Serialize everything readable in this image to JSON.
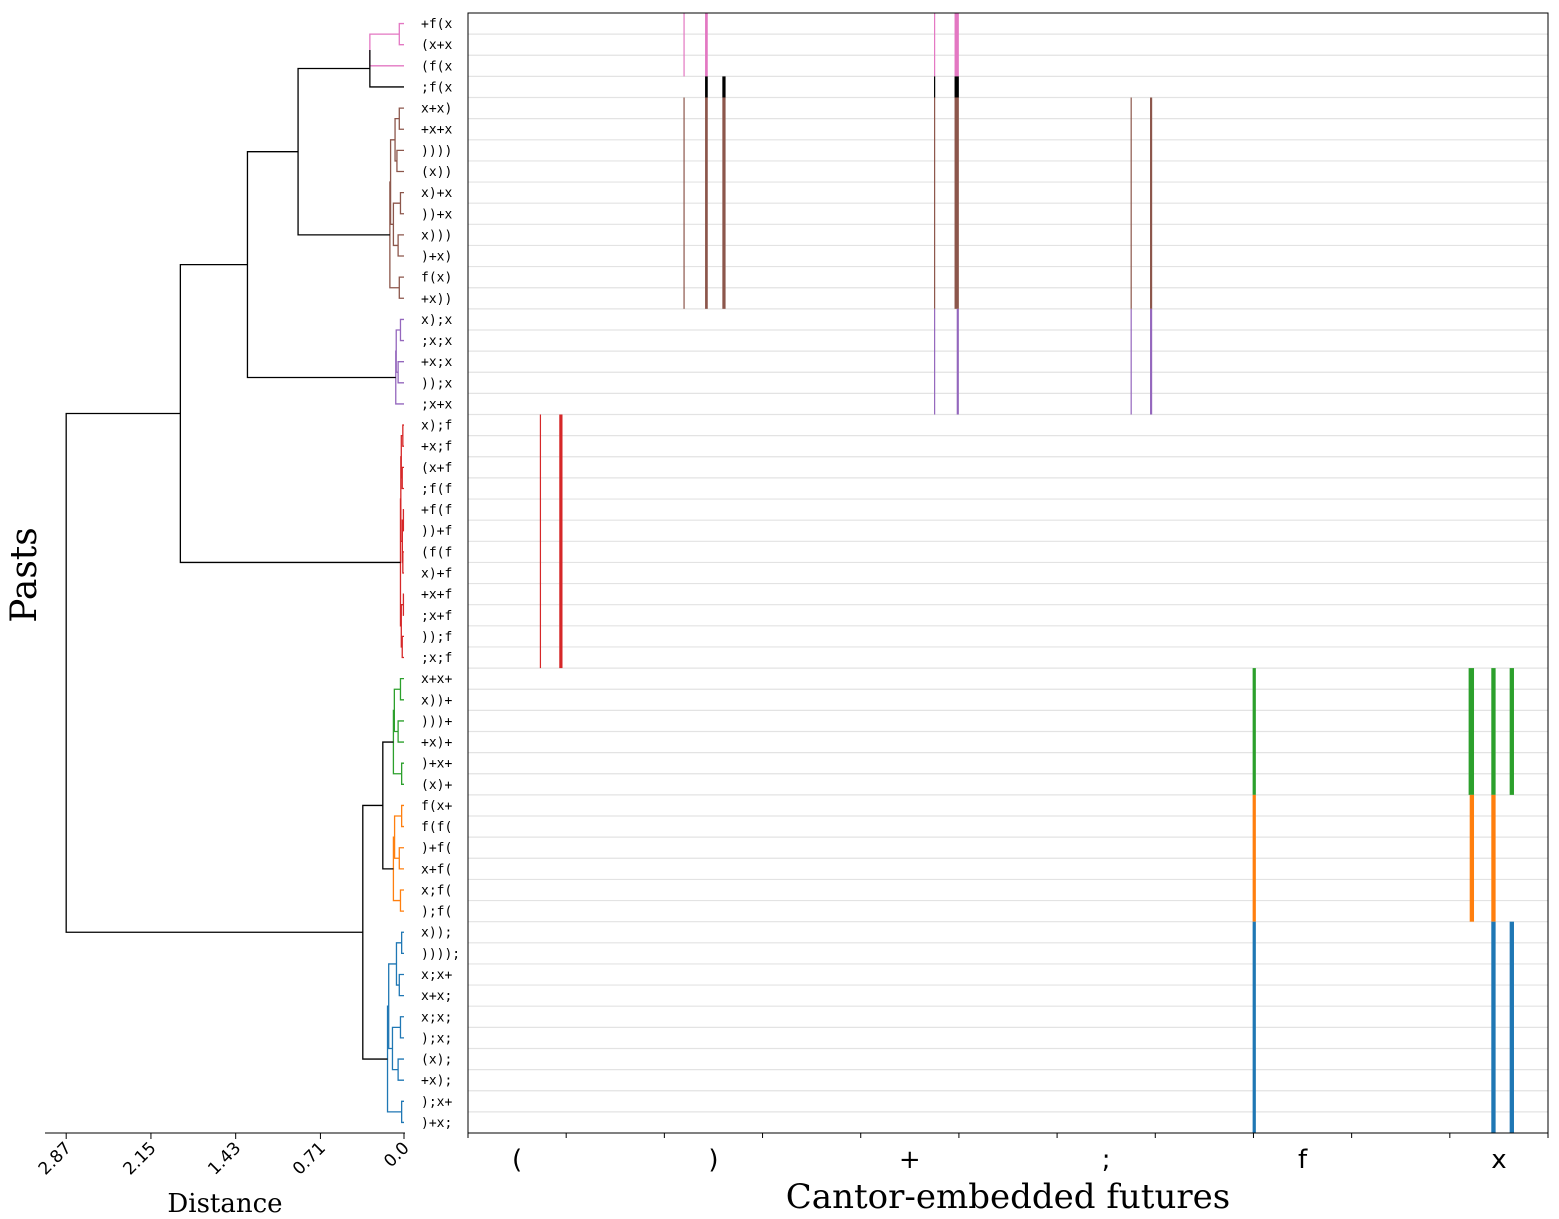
{
  "chart_data": {
    "type": "dendrogram-raster",
    "ylabel": "Pasts",
    "dendrogram": {
      "xlabel": "Distance",
      "ticks": [
        "2.87",
        "2.15",
        "1.43",
        "0.71",
        "0.0"
      ],
      "tick_values": [
        2.87,
        2.15,
        1.43,
        0.71,
        0.0
      ],
      "xlim": [
        3.05,
        0.0
      ]
    },
    "raster": {
      "xlabel": "Cantor-embedded futures",
      "tick_labels": [
        "(",
        ")",
        "+",
        ";",
        "f",
        "x"
      ],
      "xlim": [
        0,
        1
      ],
      "grid": true
    },
    "leaves": [
      "+f(x",
      "(x+x",
      "(f(x",
      ";f(x",
      "x+x)",
      "+x+x",
      "))))",
      "(x))",
      "x)+x",
      "))+x",
      "x)))",
      ")+x)",
      "f(x)",
      "+x))",
      "x);x",
      ";x;x",
      "+x;x",
      "));x",
      ";x+x",
      "x);f",
      "+x;f",
      "(x+f",
      ";f(f",
      "+f(f",
      "))+f",
      "(f(f",
      "x)+f",
      "+x+f",
      ";x+f",
      "));f",
      ";x;f",
      "x+x+",
      "x))+",
      ")))+",
      "+x)+",
      ")+x+",
      "(x)+",
      "f(x+",
      "f(f(",
      ")+f(",
      "x+f(",
      "x;f(",
      ");f(",
      "x));",
      "))));",
      "x;x+",
      "x+x;",
      "x;x;",
      ");x;",
      "(x);",
      "+x);",
      ");x+",
      ")+x;"
    ],
    "clusters": [
      {
        "name": "pink",
        "color": "#e377c2",
        "start": 0,
        "end": 2,
        "link": 0.29,
        "inner": [
          0.04,
          0.04
        ],
        "lines": [
          [
            0.1995,
            0.2
          ],
          [
            0.2195,
            0.222
          ],
          [
            0.4315,
            0.432
          ],
          [
            0.4505,
            0.4545
          ]
        ]
      },
      {
        "name": "black",
        "color": "#000000",
        "start": 3,
        "end": 3,
        "link": 0,
        "inner": [],
        "lines": [
          [
            0.2195,
            0.222
          ],
          [
            0.2355,
            0.2385
          ],
          [
            0.4315,
            0.432
          ],
          [
            0.4505,
            0.4545
          ]
        ]
      },
      {
        "name": "brown",
        "color": "#8c564b",
        "start": 4,
        "end": 13,
        "link": 0.12,
        "inner": [
          0.04,
          0.06,
          0.03,
          0.05,
          0.04,
          0.02,
          0.05,
          0.03,
          0.04
        ],
        "lines": [
          [
            0.1995,
            0.2
          ],
          [
            0.2195,
            0.222
          ],
          [
            0.2355,
            0.2385
          ],
          [
            0.4315,
            0.432
          ],
          [
            0.4505,
            0.4545
          ],
          [
            0.6135,
            0.6145
          ],
          [
            0.6315,
            0.6335
          ]
        ]
      },
      {
        "name": "purple",
        "color": "#9467bd",
        "start": 14,
        "end": 18,
        "link": 0.07,
        "inner": [
          0.03,
          0.05,
          0.02,
          0.04
        ],
        "lines": [
          [
            0.4315,
            0.432
          ],
          [
            0.4525,
            0.4545
          ],
          [
            0.6135,
            0.6145
          ],
          [
            0.6315,
            0.6335
          ]
        ]
      },
      {
        "name": "red",
        "color": "#d62728",
        "start": 19,
        "end": 30,
        "link": 0.03,
        "inner": [
          0.01,
          0.015,
          0.005,
          0.01,
          0.005,
          0.015,
          0.01,
          0.005,
          0.01,
          0.005,
          0.01
        ],
        "lines": [
          [
            0.0665,
            0.0675
          ],
          [
            0.0845,
            0.0875
          ]
        ]
      },
      {
        "name": "green",
        "color": "#2ca02c",
        "start": 31,
        "end": 36,
        "link": 0.09,
        "inner": [
          0.03,
          0.05,
          0.02,
          0.04,
          0.03
        ],
        "lines": [
          [
            0.7265,
            0.7295
          ],
          [
            0.9265,
            0.9315
          ],
          [
            0.9475,
            0.9515
          ],
          [
            0.9645,
            0.9685
          ]
        ]
      },
      {
        "name": "orange",
        "color": "#ff7f0e",
        "start": 37,
        "end": 42,
        "link": 0.07,
        "inner": [
          0.02,
          0.04,
          0.03,
          0.05,
          0.02
        ],
        "lines": [
          [
            0.7265,
            0.7295
          ],
          [
            0.9275,
            0.9315
          ],
          [
            0.9475,
            0.9515
          ]
        ]
      },
      {
        "name": "blue",
        "color": "#1f77b4",
        "start": 43,
        "end": 52,
        "link": 0.14,
        "inner": [
          0.02,
          0.04,
          0.03,
          0.05,
          0.02,
          0.03,
          0.06,
          0.04,
          0.03
        ],
        "lines": [
          [
            0.7265,
            0.7295
          ],
          [
            0.9475,
            0.9515
          ],
          [
            0.9645,
            0.9685
          ]
        ]
      }
    ],
    "merges": {
      "pink_black": 0.29,
      "pink_brown": 0.9,
      "upper_purple": 1.33,
      "upper_red": 1.9,
      "green_orange": 0.18,
      "lower_blue": 0.35,
      "root": 2.87
    }
  }
}
